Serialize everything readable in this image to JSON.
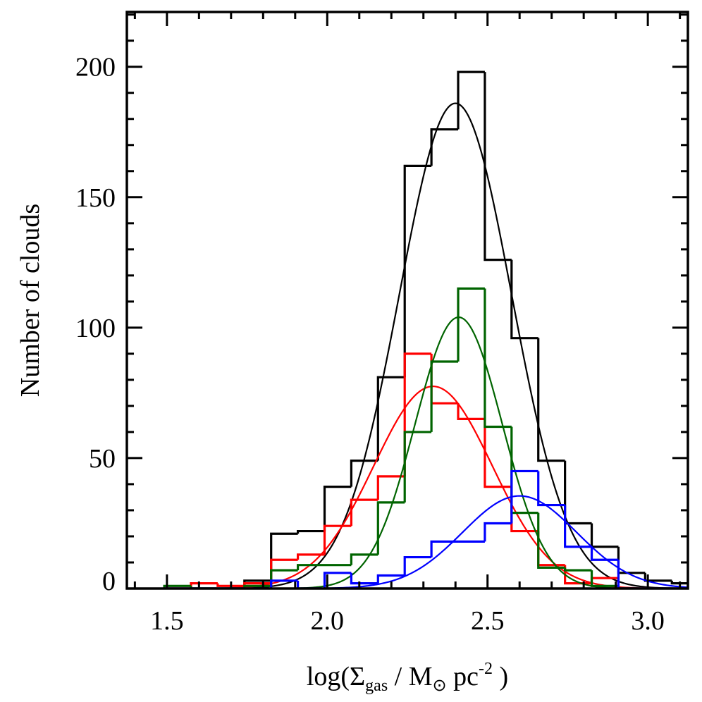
{
  "chart_data": {
    "type": "histogram",
    "xlabel": {
      "prefix": "log(Σ",
      "sub1": "gas",
      "mid": " / M",
      "sub2": "⊙",
      "mid2": " pc",
      "sup": "-2",
      "suffix": " )"
    },
    "ylabel": "Number of clouds",
    "xlim": [
      1.375,
      3.125
    ],
    "ylim": [
      0,
      221
    ],
    "xticks": [
      1.5,
      2.0,
      2.5,
      3.0
    ],
    "xtick_labels": [
      "1.5",
      "2.0",
      "2.5",
      "3.0"
    ],
    "yticks": [
      0,
      50,
      100,
      150,
      200
    ],
    "ytick_labels": [
      "0",
      "50",
      "100",
      "150",
      "200"
    ],
    "bin_start": 1.4917,
    "bin_width": 0.08333,
    "grid": false,
    "series": [
      {
        "color": "#000000",
        "values": [
          0,
          0,
          0,
          3,
          21,
          22,
          39,
          49,
          81,
          162,
          176,
          198,
          126,
          96,
          49,
          25,
          16,
          6,
          3,
          2
        ],
        "fit": {
          "amplitude": 186,
          "mean": 2.4,
          "sigma": 0.175
        }
      },
      {
        "color": "#ff0000",
        "values": [
          0,
          2,
          1,
          2,
          11,
          13,
          24,
          34,
          43,
          90,
          71,
          65,
          39,
          22,
          9,
          2,
          4,
          0,
          0,
          0
        ],
        "fit": {
          "amplitude": 77.5,
          "mean": 2.33,
          "sigma": 0.185
        }
      },
      {
        "color": "#006400",
        "values": [
          1,
          0,
          0,
          1,
          7,
          9,
          9,
          13,
          33,
          60,
          87,
          115,
          62,
          29,
          8,
          7,
          1,
          0,
          0,
          0
        ],
        "fit": {
          "amplitude": 104,
          "mean": 2.41,
          "sigma": 0.136
        }
      },
      {
        "color": "#0000ff",
        "values": [
          0,
          0,
          0,
          0,
          3,
          0,
          6,
          2,
          5,
          12,
          18,
          18,
          25,
          45,
          32,
          16,
          11,
          0,
          0,
          0
        ],
        "fit": {
          "amplitude": 35.5,
          "mean": 2.6,
          "sigma": 0.178
        }
      }
    ]
  }
}
